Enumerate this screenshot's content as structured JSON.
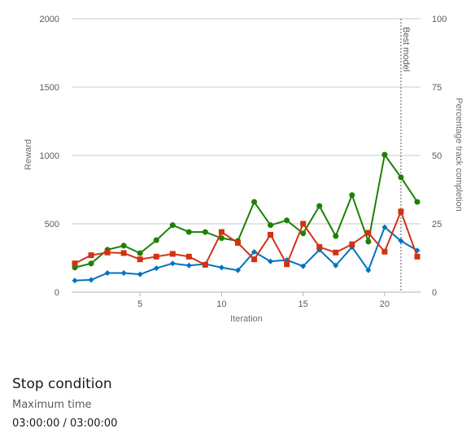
{
  "chart_data": {
    "type": "line",
    "xlabel": "Iteration",
    "ylabel": "Reward",
    "y2label": "Percentage track completion",
    "x": [
      1,
      2,
      3,
      4,
      5,
      6,
      7,
      8,
      9,
      10,
      11,
      12,
      13,
      14,
      15,
      16,
      17,
      18,
      19,
      20,
      21,
      22
    ],
    "xlim": [
      1,
      22
    ],
    "xticks": [
      5,
      10,
      15,
      20
    ],
    "ylim": [
      0,
      2000
    ],
    "yticks": [
      0,
      500,
      1000,
      1500,
      2000
    ],
    "y2lim": [
      0,
      100
    ],
    "y2ticks": [
      0,
      25,
      50,
      75,
      100
    ],
    "grid": true,
    "annotation": {
      "label": "Best model",
      "x": 21
    },
    "series": [
      {
        "axis": "left",
        "color": "#1d8102",
        "marker": "circle",
        "values": [
          180,
          210,
          310,
          340,
          285,
          380,
          490,
          440,
          440,
          395,
          375,
          660,
          490,
          525,
          430,
          630,
          410,
          710,
          370,
          1005,
          840,
          660
        ]
      },
      {
        "axis": "left",
        "color": "#0073bb",
        "marker": "diamond",
        "values": [
          85,
          90,
          140,
          140,
          130,
          175,
          210,
          195,
          205,
          180,
          160,
          295,
          225,
          235,
          190,
          310,
          195,
          330,
          160,
          475,
          375,
          305
        ]
      },
      {
        "axis": "right",
        "color": "#d13212",
        "marker": "square",
        "values": [
          10.5,
          13.5,
          14.5,
          14.3,
          12,
          13,
          14,
          13,
          10,
          22,
          18,
          12,
          21,
          10.2,
          25,
          16.5,
          14.5,
          17.5,
          21.7,
          14.8,
          29.5,
          13
        ]
      }
    ]
  },
  "stop": {
    "title": "Stop condition",
    "label": "Maximum time",
    "value": "03:00:00 / 03:00:00"
  }
}
